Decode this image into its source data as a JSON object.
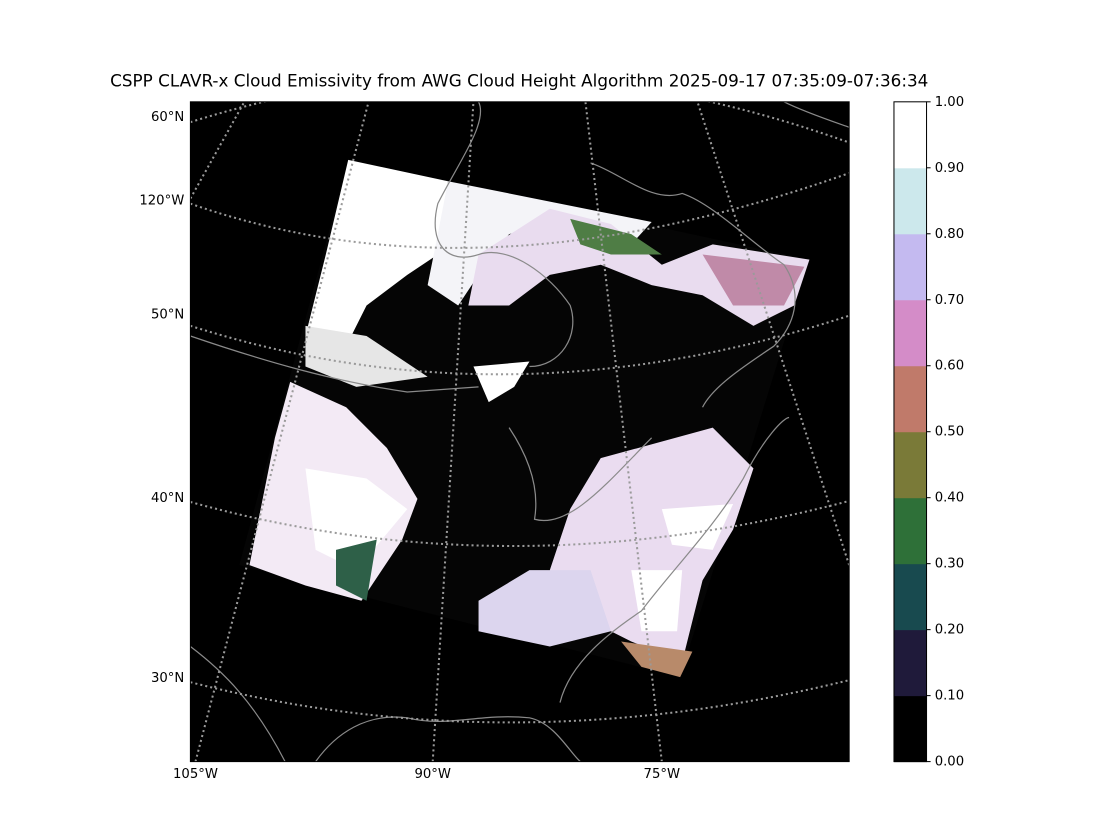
{
  "map": {
    "title": "CSPP CLAVR-x Cloud Emissivity from AWG Cloud Height Algorithm 2025-09-17 07:35:09-07:36:34",
    "lat_labels": [
      "60°N",
      "50°N",
      "40°N",
      "30°N"
    ],
    "lon_labels": [
      "120°W",
      "105°W",
      "90°W",
      "75°W"
    ],
    "colorbar": {
      "lim": [
        0,
        1
      ],
      "ticks": [
        {
          "value": 0,
          "label": "0.00"
        },
        {
          "value": 0.1,
          "label": "0.10"
        },
        {
          "value": 0.2,
          "label": "0.20"
        },
        {
          "value": 0.3,
          "label": "0.30"
        },
        {
          "value": 0.4,
          "label": "0.40"
        },
        {
          "value": 0.5,
          "label": "0.50"
        },
        {
          "value": 0.6,
          "label": "0.60"
        },
        {
          "value": 0.7,
          "label": "0.70"
        },
        {
          "value": 0.8,
          "label": "0.80"
        },
        {
          "value": 0.9,
          "label": "0.90"
        },
        {
          "value": 1,
          "label": "1.00"
        }
      ],
      "colors": [
        "#000000",
        "#1f1a3a",
        "#184a4f",
        "#2e7038",
        "#7a7a38",
        "#c07a6a",
        "#d48cc8",
        "#c4baf0",
        "#cce8ec",
        "#ffffff"
      ]
    }
  }
}
